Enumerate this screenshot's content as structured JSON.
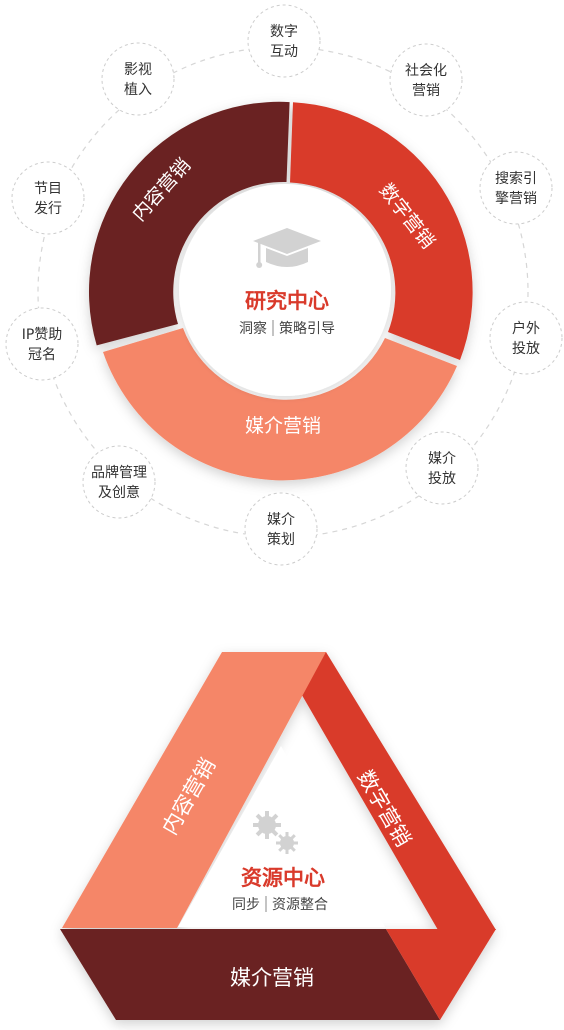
{
  "research": {
    "title": "研究中心",
    "subtitle_left": "洞察",
    "subtitle_right": "策略引导",
    "segments": {
      "content": "内容营销",
      "digital": "数字营销",
      "media": "媒介营销"
    },
    "nodes": {
      "digital_interaction": [
        "数字",
        "互动"
      ],
      "social_marketing": [
        "社会化",
        "营销"
      ],
      "search_engine": [
        "搜索引",
        "擎营销"
      ],
      "outdoor": [
        "户外",
        "投放"
      ],
      "media_placement": [
        "媒介",
        "投放"
      ],
      "media_planning": [
        "媒介",
        "策划"
      ],
      "brand_management": [
        "品牌管理",
        "及创意"
      ],
      "ip_sponsorship": [
        "IP赞助",
        "冠名"
      ],
      "program_release": [
        "节目",
        "发行"
      ],
      "product_placement": [
        "影视",
        "植入"
      ]
    }
  },
  "resource": {
    "title": "资源中心",
    "subtitle_left": "同步",
    "subtitle_right": "资源整合",
    "sides": {
      "content": "内容营销",
      "digital": "数字营销",
      "media": "媒介营销"
    }
  },
  "colors": {
    "dark_red": "#6b2420",
    "red": "#d93a2b",
    "salmon": "#f58668"
  },
  "icons": {
    "research": "graduation-cap-icon",
    "resource": "gears-icon"
  }
}
